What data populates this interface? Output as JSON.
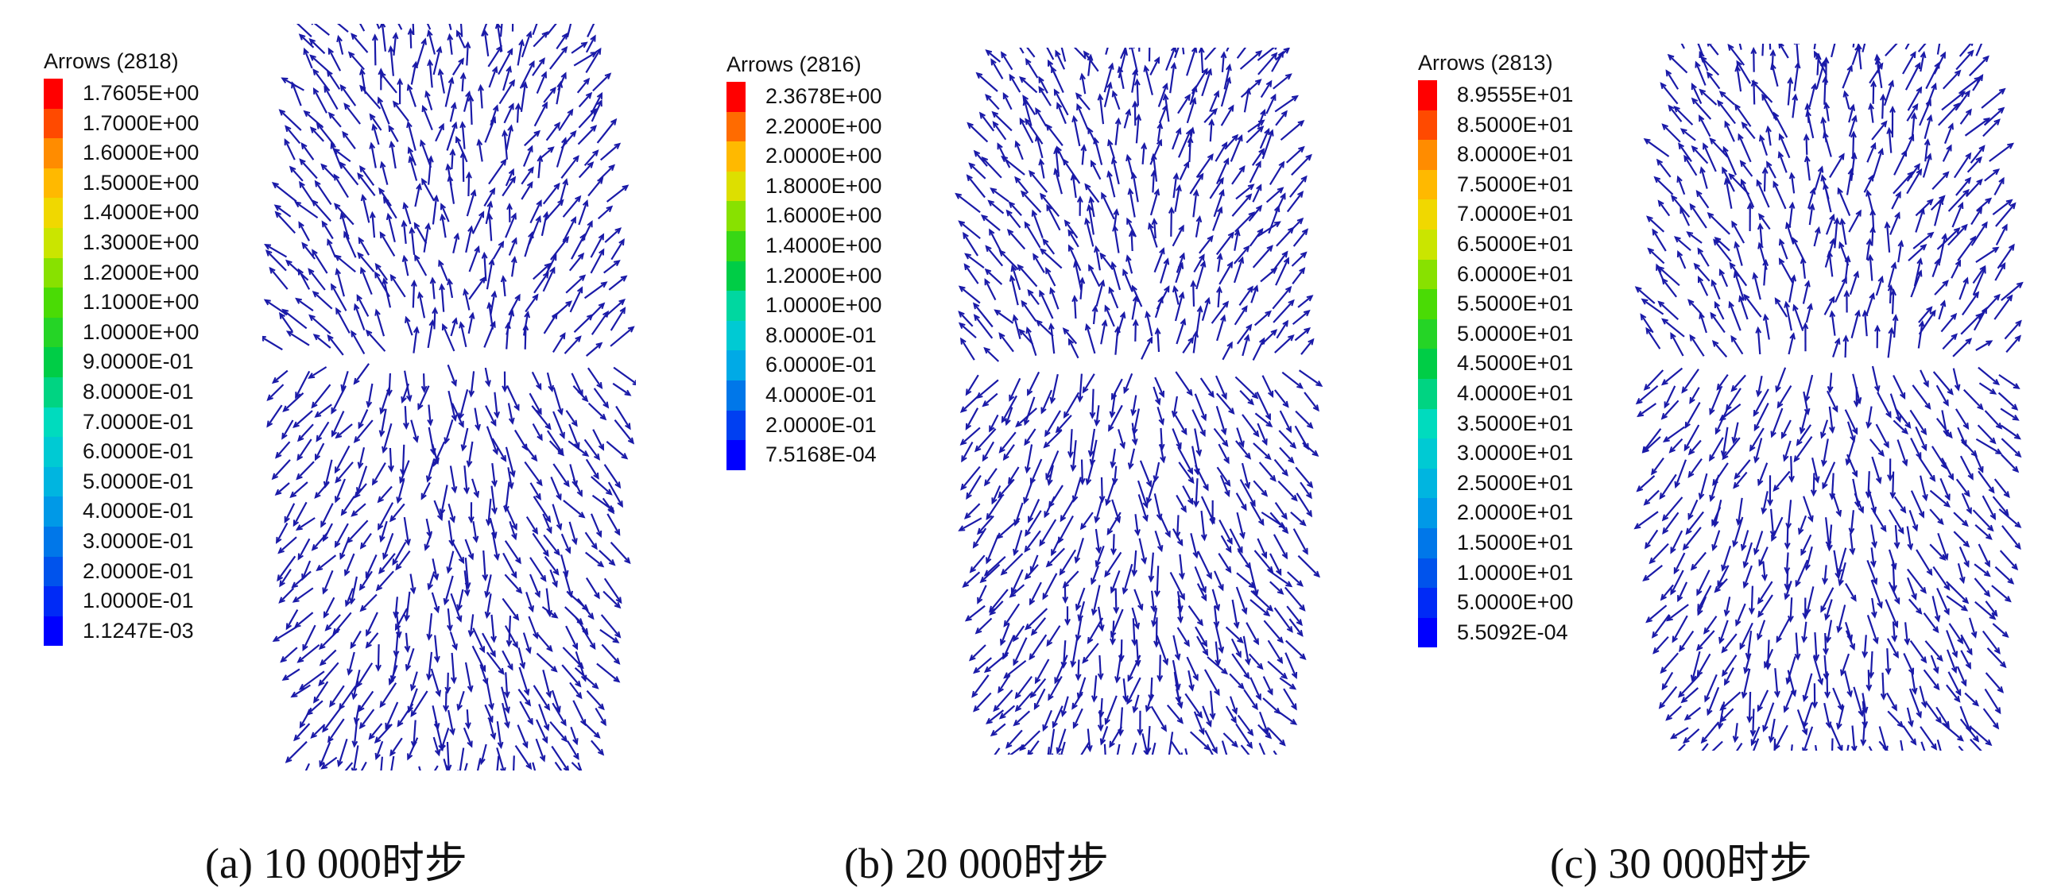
{
  "panels": [
    {
      "legend_title": "Arrows (2818)",
      "legend_values": [
        "1.7605E+00",
        "1.7000E+00",
        "1.6000E+00",
        "1.5000E+00",
        "1.4000E+00",
        "1.3000E+00",
        "1.2000E+00",
        "1.1000E+00",
        "1.0000E+00",
        "9.0000E-01",
        "8.0000E-01",
        "7.0000E-01",
        "6.0000E-01",
        "5.0000E-01",
        "4.0000E-01",
        "3.0000E-01",
        "2.0000E-01",
        "1.0000E-01",
        "1.1247E-03"
      ],
      "caption": "(a) 10 000时步"
    },
    {
      "legend_title": "Arrows (2816)",
      "legend_values": [
        "2.3678E+00",
        "2.2000E+00",
        "2.0000E+00",
        "1.8000E+00",
        "1.6000E+00",
        "1.4000E+00",
        "1.2000E+00",
        "1.0000E+00",
        "8.0000E-01",
        "6.0000E-01",
        "4.0000E-01",
        "2.0000E-01",
        "7.5168E-04"
      ],
      "caption": "(b) 20 000时步"
    },
    {
      "legend_title": "Arrows (2813)",
      "legend_values": [
        "8.9555E+01",
        "8.5000E+01",
        "8.0000E+01",
        "7.5000E+01",
        "7.0000E+01",
        "6.5000E+01",
        "6.0000E+01",
        "5.5000E+01",
        "5.0000E+01",
        "4.5000E+01",
        "4.0000E+01",
        "3.5000E+01",
        "3.0000E+01",
        "2.5000E+01",
        "2.0000E+01",
        "1.5000E+01",
        "1.0000E+01",
        "5.0000E+00",
        "5.5092E-04"
      ],
      "caption": "(c) 30 000时步"
    }
  ],
  "colors": {
    "arrow": "#1a1aa8",
    "scale_top": "#ff0000",
    "scale_bottom": "#0000ff"
  }
}
